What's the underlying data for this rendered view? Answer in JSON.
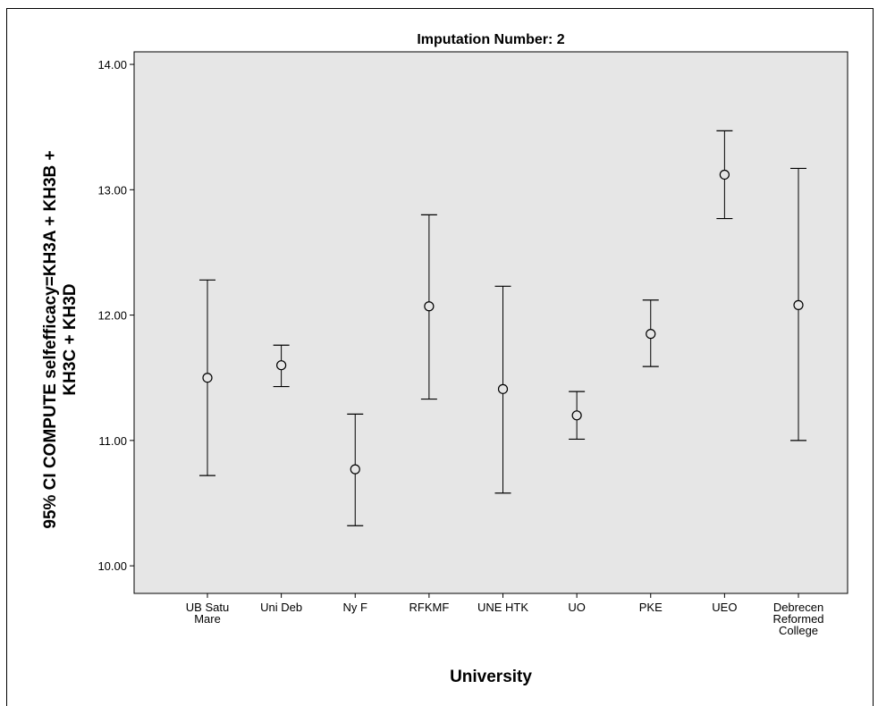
{
  "chart_data": {
    "type": "errorbar",
    "title": "Imputation Number: 2",
    "xlabel": "University",
    "ylabel": "95% CI COMPUTE selfefficacy=KH3A + KH3B + KH3C + KH3D",
    "ylabel_lines": [
      "95% CI COMPUTE selfefficacy=KH3A + KH3B +",
      "KH3C + KH3D"
    ],
    "ylim": [
      9.78,
      14.1
    ],
    "yticks": [
      10.0,
      11.0,
      12.0,
      13.0,
      14.0
    ],
    "ytick_labels": [
      "10.00",
      "11.00",
      "12.00",
      "13.00",
      "14.00"
    ],
    "categories": [
      {
        "label_lines": [
          "UB Satu",
          "Mare"
        ],
        "mean": 11.5,
        "lower": 10.72,
        "upper": 12.28
      },
      {
        "label_lines": [
          "Uni Deb"
        ],
        "mean": 11.6,
        "lower": 11.43,
        "upper": 11.76
      },
      {
        "label_lines": [
          "Ny F"
        ],
        "mean": 10.77,
        "lower": 10.32,
        "upper": 11.21
      },
      {
        "label_lines": [
          "RFKMF"
        ],
        "mean": 12.07,
        "lower": 11.33,
        "upper": 12.8
      },
      {
        "label_lines": [
          "UNE HTK"
        ],
        "mean": 11.41,
        "lower": 10.58,
        "upper": 12.23
      },
      {
        "label_lines": [
          "UO"
        ],
        "mean": 11.2,
        "lower": 11.01,
        "upper": 11.39
      },
      {
        "label_lines": [
          "PKE"
        ],
        "mean": 11.85,
        "lower": 11.59,
        "upper": 12.12
      },
      {
        "label_lines": [
          "UEO"
        ],
        "mean": 13.12,
        "lower": 12.77,
        "upper": 13.47
      },
      {
        "label_lines": [
          "Debrecen",
          "Reformed",
          "College"
        ],
        "mean": 12.08,
        "lower": 11.0,
        "upper": 13.17
      }
    ],
    "grid": false,
    "legend": "none",
    "colors": {
      "plot_background": "#e6e6e6",
      "marks": "#000000"
    }
  }
}
